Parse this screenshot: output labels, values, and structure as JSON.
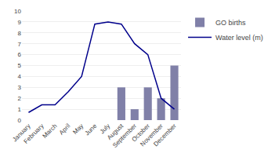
{
  "chart_data": {
    "type": "bar",
    "categories": [
      "January",
      "February",
      "March",
      "April",
      "May",
      "June",
      "July",
      "August",
      "September",
      "October",
      "November",
      "December"
    ],
    "series": [
      {
        "name": "GO births",
        "type": "bar",
        "color": "#8080a8",
        "values": [
          0,
          0,
          0,
          0,
          0,
          0,
          0,
          3,
          1,
          3,
          2,
          5
        ]
      },
      {
        "name": "Water level (m)",
        "type": "line",
        "color": "#00008B",
        "values": [
          0.7,
          1.4,
          1.4,
          2.6,
          4.0,
          8.8,
          9.0,
          8.8,
          7.0,
          6.0,
          2.0,
          1.0
        ]
      }
    ],
    "ylim": [
      0,
      10
    ],
    "yticks": [
      0,
      1,
      2,
      3,
      4,
      5,
      6,
      7,
      8,
      9,
      10
    ],
    "grid": true,
    "legend": "right"
  }
}
